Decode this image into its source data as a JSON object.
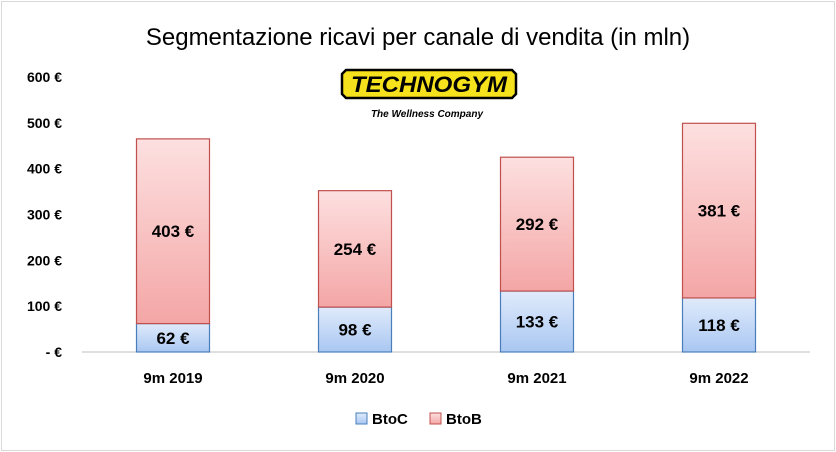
{
  "chart_data": {
    "type": "bar",
    "stacked": true,
    "title": "Segmentazione ricavi per canale di vendita (in mln)",
    "categories": [
      "9m 2019",
      "9m 2020",
      "9m 2021",
      "9m 2022"
    ],
    "series": [
      {
        "name": "BtoC",
        "values": [
          62,
          98,
          133,
          118
        ],
        "labels": [
          "62 €",
          "98 €",
          "133 €",
          "118 €"
        ],
        "color_top": "#e0ebfb",
        "color_bottom": "#a9c7f2",
        "stroke": "#4a7ebb"
      },
      {
        "name": "BtoB",
        "values": [
          403,
          254,
          292,
          381
        ],
        "labels": [
          "403 €",
          "254 €",
          "292 €",
          "381 €"
        ],
        "color_top": "#fde0e0",
        "color_bottom": "#f4a6a6",
        "stroke": "#c0504d"
      }
    ],
    "ylim": [
      0,
      600
    ],
    "y_ticks": [
      {
        "value": 0,
        "label": "-   €"
      },
      {
        "value": 100,
        "label": "100 €"
      },
      {
        "value": 200,
        "label": "200 €"
      },
      {
        "value": 300,
        "label": "300 €"
      },
      {
        "value": 400,
        "label": "400 €"
      },
      {
        "value": 500,
        "label": "500 €"
      },
      {
        "value": 600,
        "label": "600 €"
      }
    ],
    "grid": false,
    "legend_position": "bottom"
  },
  "logo": {
    "brand": "TECHNOGYM",
    "tagline": "The Wellness Company",
    "color": "#f5e11c"
  }
}
